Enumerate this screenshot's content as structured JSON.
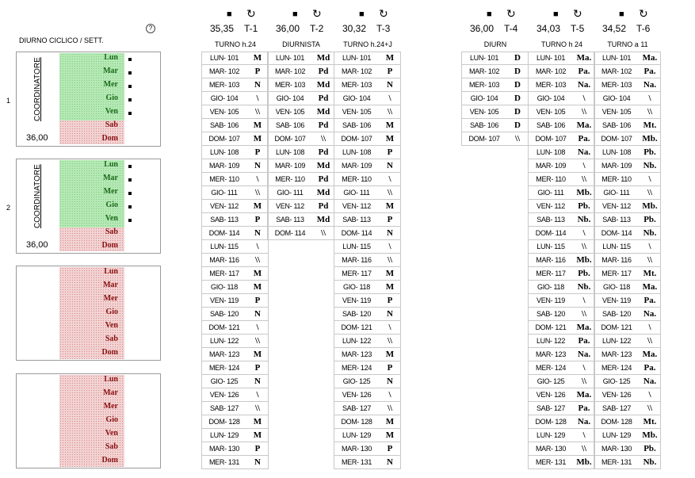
{
  "left_title": "DIURNO CICLICO / SETT.",
  "help_icon": "?",
  "symbols": {
    "stop": "■",
    "cycle": "↻"
  },
  "columns": [
    {
      "num": "35,35",
      "code": "T-1",
      "title": "TURNO h.24"
    },
    {
      "num": "36,00",
      "code": "T-2",
      "title": "DIURNISTA"
    },
    {
      "num": "30,32",
      "code": "T-3",
      "title": "TURNO h.24+J"
    },
    {
      "num": "36,00",
      "code": "T-4",
      "title": "DIURN"
    },
    {
      "num": "34,03",
      "code": "T-5",
      "title": "TURNO h 24"
    },
    {
      "num": "34,52",
      "code": "T-6",
      "title": "TURNO a 11"
    }
  ],
  "groups": [
    {
      "index": "1",
      "label": "COORDINATORE",
      "hours": "36,00"
    },
    {
      "index": "2",
      "label": "COORDINATORE",
      "hours": "36,00"
    },
    {
      "index": "",
      "label": "",
      "hours": ""
    },
    {
      "index": "",
      "label": "",
      "hours": ""
    }
  ],
  "weekdays": [
    "Lun",
    "Mar",
    "Mer",
    "Gio",
    "Ven",
    "Sab",
    "Dom"
  ],
  "tables": {
    "t1": [
      [
        "LUN- 101",
        "M"
      ],
      [
        "MAR- 102",
        "P"
      ],
      [
        "MER- 103",
        "N"
      ],
      [
        "GIO- 104",
        "\\"
      ],
      [
        "VEN- 105",
        "\\\\"
      ],
      [
        "SAB- 106",
        "M"
      ],
      [
        "DOM- 107",
        "M"
      ],
      [
        "LUN- 108",
        "P"
      ],
      [
        "MAR- 109",
        "N"
      ],
      [
        "MER- 110",
        "\\"
      ],
      [
        "GIO- 111",
        "\\\\"
      ],
      [
        "VEN- 112",
        "M"
      ],
      [
        "SAB- 113",
        "P"
      ],
      [
        "DOM- 114",
        "N"
      ],
      [
        "LUN- 115",
        "\\"
      ],
      [
        "MAR- 116",
        "\\\\"
      ],
      [
        "MER- 117",
        "M"
      ],
      [
        "GIO- 118",
        "M"
      ],
      [
        "VEN- 119",
        "P"
      ],
      [
        "SAB- 120",
        "N"
      ],
      [
        "DOM- 121",
        "\\"
      ],
      [
        "LUN- 122",
        "\\\\"
      ],
      [
        "MAR- 123",
        "M"
      ],
      [
        "MER- 124",
        "P"
      ],
      [
        "GIO- 125",
        "N"
      ],
      [
        "VEN- 126",
        "\\"
      ],
      [
        "SAB- 127",
        "\\\\"
      ],
      [
        "DOM- 128",
        "M"
      ],
      [
        "LUN- 129",
        "M"
      ],
      [
        "MAR- 130",
        "P"
      ],
      [
        "MER- 131",
        "N"
      ]
    ],
    "t2": [
      [
        "LUN- 101",
        "Md"
      ],
      [
        "MAR- 102",
        "Pd"
      ],
      [
        "MER- 103",
        "Md"
      ],
      [
        "GIO- 104",
        "Pd"
      ],
      [
        "VEN- 105",
        "Md"
      ],
      [
        "SAB- 106",
        "Pd"
      ],
      [
        "DOM- 107",
        "\\\\"
      ],
      [
        "LUN- 108",
        "Pd"
      ],
      [
        "MAR- 109",
        "Md"
      ],
      [
        "MER- 110",
        "Pd"
      ],
      [
        "GIO- 111",
        "Md"
      ],
      [
        "VEN- 112",
        "Pd"
      ],
      [
        "SAB- 113",
        "Md"
      ],
      [
        "DOM- 114",
        "\\\\"
      ]
    ],
    "t3": [
      [
        "LUN- 101",
        "M"
      ],
      [
        "MAR- 102",
        "P"
      ],
      [
        "MER- 103",
        "N"
      ],
      [
        "GIO- 104",
        "\\"
      ],
      [
        "VEN- 105",
        "\\\\"
      ],
      [
        "SAB- 106",
        "M"
      ],
      [
        "DOM- 107",
        "M"
      ],
      [
        "LUN- 108",
        "P"
      ],
      [
        "MAR- 109",
        "N"
      ],
      [
        "MER- 110",
        "\\"
      ],
      [
        "GIO- 111",
        "\\\\"
      ],
      [
        "VEN- 112",
        "M"
      ],
      [
        "SAB- 113",
        "P"
      ],
      [
        "DOM- 114",
        "N"
      ],
      [
        "LUN- 115",
        "\\"
      ],
      [
        "MAR- 116",
        "\\\\"
      ],
      [
        "MER- 117",
        "M"
      ],
      [
        "GIO- 118",
        "M"
      ],
      [
        "VEN- 119",
        "P"
      ],
      [
        "SAB- 120",
        "N"
      ],
      [
        "DOM- 121",
        "\\"
      ],
      [
        "LUN- 122",
        "\\\\"
      ],
      [
        "MAR- 123",
        "M"
      ],
      [
        "MER- 124",
        "P"
      ],
      [
        "GIO- 125",
        "N"
      ],
      [
        "VEN- 126",
        "\\"
      ],
      [
        "SAB- 127",
        "\\\\"
      ],
      [
        "DOM- 128",
        "M"
      ],
      [
        "LUN- 129",
        "M"
      ],
      [
        "MAR- 130",
        "P"
      ],
      [
        "MER- 131",
        "N"
      ]
    ],
    "t4": [
      [
        "LUN- 101",
        "D"
      ],
      [
        "MAR- 102",
        "D"
      ],
      [
        "MER- 103",
        "D"
      ],
      [
        "GIO- 104",
        "D"
      ],
      [
        "VEN- 105",
        "D"
      ],
      [
        "SAB- 106",
        "D"
      ],
      [
        "DOM- 107",
        "\\\\"
      ]
    ],
    "t5": [
      [
        "LUN- 101",
        "Ma."
      ],
      [
        "MAR- 102",
        "Pa."
      ],
      [
        "MER- 103",
        "Na."
      ],
      [
        "GIO- 104",
        "\\"
      ],
      [
        "VEN- 105",
        "\\\\"
      ],
      [
        "SAB- 106",
        "Ma."
      ],
      [
        "DOM- 107",
        "Pa."
      ],
      [
        "LUN- 108",
        "Na."
      ],
      [
        "MAR- 109",
        "\\"
      ],
      [
        "MER- 110",
        "\\\\"
      ],
      [
        "GIO- 111",
        "Mb."
      ],
      [
        "VEN- 112",
        "Pb."
      ],
      [
        "SAB- 113",
        "Nb."
      ],
      [
        "DOM- 114",
        "\\"
      ],
      [
        "LUN- 115",
        "\\\\"
      ],
      [
        "MAR- 116",
        "Mb."
      ],
      [
        "MER- 117",
        "Pb."
      ],
      [
        "GIO- 118",
        "Nb."
      ],
      [
        "VEN- 119",
        "\\"
      ],
      [
        "SAB- 120",
        "\\\\"
      ],
      [
        "DOM- 121",
        "Ma."
      ],
      [
        "LUN- 122",
        "Pa."
      ],
      [
        "MAR- 123",
        "Na."
      ],
      [
        "MER- 124",
        "\\"
      ],
      [
        "GIO- 125",
        "\\\\"
      ],
      [
        "VEN- 126",
        "Ma."
      ],
      [
        "SAB- 127",
        "Pa."
      ],
      [
        "DOM- 128",
        "Na."
      ],
      [
        "LUN- 129",
        "\\"
      ],
      [
        "MAR- 130",
        "\\\\"
      ],
      [
        "MER- 131",
        "Mb."
      ]
    ],
    "t6": [
      [
        "LUN- 101",
        "Ma."
      ],
      [
        "MAR- 102",
        "Pa."
      ],
      [
        "MER- 103",
        "Na."
      ],
      [
        "GIO- 104",
        "\\"
      ],
      [
        "VEN- 105",
        "\\\\"
      ],
      [
        "SAB- 106",
        "Mt."
      ],
      [
        "DOM- 107",
        "Mb."
      ],
      [
        "LUN- 108",
        "Pb."
      ],
      [
        "MAR- 109",
        "Nb."
      ],
      [
        "MER- 110",
        "\\"
      ],
      [
        "GIO- 111",
        "\\\\"
      ],
      [
        "VEN- 112",
        "Mb."
      ],
      [
        "SAB- 113",
        "Pb."
      ],
      [
        "DOM- 114",
        "Nb."
      ],
      [
        "LUN- 115",
        "\\"
      ],
      [
        "MAR- 116",
        "\\\\"
      ],
      [
        "MER- 117",
        "Mt."
      ],
      [
        "GIO- 118",
        "Ma."
      ],
      [
        "VEN- 119",
        "Pa."
      ],
      [
        "SAB- 120",
        "Na."
      ],
      [
        "DOM- 121",
        "\\"
      ],
      [
        "LUN- 122",
        "\\\\"
      ],
      [
        "MAR- 123",
        "Ma."
      ],
      [
        "MER- 124",
        "Pa."
      ],
      [
        "GIO- 125",
        "Na."
      ],
      [
        "VEN- 126",
        "\\"
      ],
      [
        "SAB- 127",
        "\\\\"
      ],
      [
        "DOM- 128",
        "Mt."
      ],
      [
        "LUN- 129",
        "Mb."
      ],
      [
        "MAR- 130",
        "Pb."
      ],
      [
        "MER- 131",
        "Nb."
      ]
    ]
  }
}
